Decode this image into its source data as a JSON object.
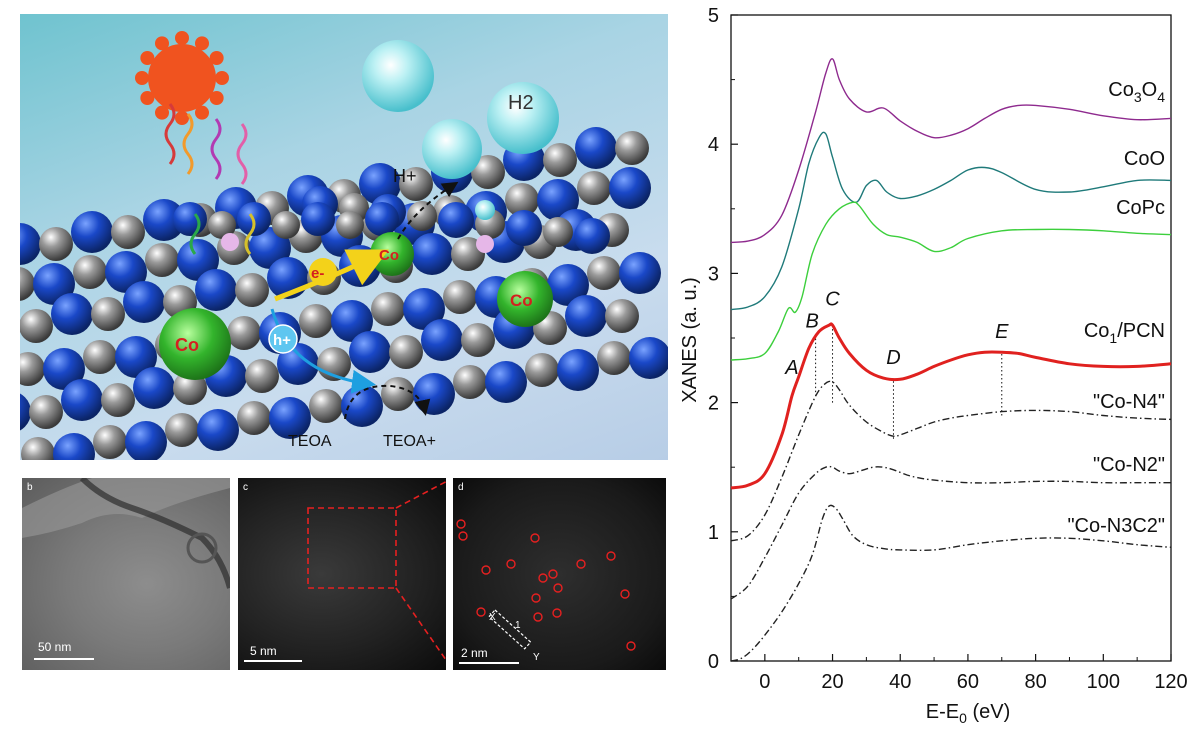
{
  "schematic": {
    "labels": {
      "h2": "H2",
      "h_plus": "H+",
      "e_minus": "e-",
      "h_plus_hole": "h+",
      "co": "Co",
      "teoa": "TEOA",
      "teoa_plus": "TEOA+"
    }
  },
  "micrographs": [
    {
      "letter": "b",
      "scale": "50 nm"
    },
    {
      "letter": "c",
      "scale": "5 nm"
    },
    {
      "letter": "d",
      "scale": "2 nm",
      "line_x": "X",
      "line_y": "Y",
      "line_number": "1"
    }
  ],
  "chart_data": {
    "type": "line",
    "xlabel": "E-E0 (eV)",
    "ylabel": "XANES (a. u.)",
    "xlim": [
      -10,
      120
    ],
    "ylim": [
      0,
      5
    ],
    "xticks": [
      0,
      20,
      40,
      60,
      80,
      100,
      120
    ],
    "yticks": [
      0,
      1,
      2,
      3,
      4,
      5
    ],
    "grid": false,
    "series": [
      {
        "name": "Co3O4",
        "label_main": "Co",
        "label_sub1": "3",
        "label_mid": "O",
        "label_sub2": "4",
        "color": "#8e2a8e",
        "style": "solid",
        "x": [
          -10,
          -5,
          0,
          5,
          10,
          15,
          18,
          20,
          22,
          25,
          30,
          35,
          40,
          45,
          50,
          55,
          60,
          65,
          70,
          75,
          80,
          90,
          100,
          110,
          120
        ],
        "y": [
          3.24,
          3.25,
          3.3,
          3.45,
          3.8,
          4.25,
          4.55,
          4.66,
          4.5,
          4.35,
          4.25,
          4.28,
          4.18,
          4.1,
          4.05,
          4.07,
          4.12,
          4.2,
          4.27,
          4.3,
          4.3,
          4.27,
          4.22,
          4.19,
          4.2
        ]
      },
      {
        "name": "CoO",
        "color": "#1f7a7a",
        "style": "solid",
        "x": [
          -10,
          -5,
          0,
          5,
          10,
          13,
          16,
          18,
          20,
          23,
          27,
          30,
          33,
          36,
          40,
          45,
          50,
          55,
          60,
          65,
          70,
          80,
          90,
          100,
          110,
          120
        ],
        "y": [
          2.72,
          2.74,
          2.82,
          3.05,
          3.5,
          3.85,
          4.05,
          4.08,
          3.9,
          3.65,
          3.55,
          3.68,
          3.72,
          3.63,
          3.58,
          3.6,
          3.65,
          3.72,
          3.8,
          3.82,
          3.78,
          3.65,
          3.63,
          3.67,
          3.72,
          3.72
        ]
      },
      {
        "name": "CoPc",
        "color": "#3ccf3c",
        "style": "solid",
        "x": [
          -10,
          -5,
          0,
          4,
          7,
          9,
          11,
          14,
          18,
          22,
          26,
          28,
          32,
          36,
          40,
          45,
          50,
          55,
          60,
          70,
          80,
          90,
          100,
          110,
          120
        ],
        "y": [
          2.33,
          2.34,
          2.38,
          2.55,
          2.73,
          2.7,
          2.82,
          3.15,
          3.38,
          3.5,
          3.55,
          3.52,
          3.38,
          3.3,
          3.28,
          3.24,
          3.17,
          3.2,
          3.27,
          3.33,
          3.34,
          3.34,
          3.33,
          3.31,
          3.3
        ]
      },
      {
        "name": "Co1/PCN",
        "label_main": "Co",
        "label_sub1": "1",
        "label_rest": "/PCN",
        "color": "#e0211f",
        "style": "bold",
        "x": [
          -10,
          -5,
          0,
          5,
          8,
          10,
          13,
          16,
          19,
          20,
          22,
          25,
          30,
          35,
          40,
          45,
          50,
          55,
          60,
          65,
          70,
          75,
          80,
          90,
          100,
          110,
          120
        ],
        "y": [
          1.34,
          1.36,
          1.45,
          1.75,
          2.05,
          2.2,
          2.42,
          2.55,
          2.6,
          2.6,
          2.5,
          2.38,
          2.25,
          2.19,
          2.18,
          2.22,
          2.28,
          2.33,
          2.37,
          2.39,
          2.39,
          2.38,
          2.35,
          2.3,
          2.28,
          2.28,
          2.3
        ]
      },
      {
        "name": "\"Co-N4\"",
        "color": "#222222",
        "style": "dashdot",
        "x": [
          -10,
          -5,
          0,
          5,
          10,
          15,
          18,
          20,
          22,
          25,
          30,
          35,
          38,
          40,
          45,
          50,
          55,
          60,
          70,
          80,
          90,
          100,
          110,
          120
        ],
        "y": [
          0.93,
          0.97,
          1.13,
          1.42,
          1.75,
          2.05,
          2.15,
          2.16,
          2.1,
          1.98,
          1.85,
          1.77,
          1.74,
          1.75,
          1.8,
          1.85,
          1.88,
          1.9,
          1.93,
          1.94,
          1.93,
          1.9,
          1.88,
          1.87
        ]
      },
      {
        "name": "\"Co-N2\"",
        "color": "#222222",
        "style": "dashdot",
        "x": [
          -10,
          -5,
          0,
          5,
          10,
          15,
          18,
          20,
          22,
          25,
          28,
          32,
          35,
          38,
          42,
          45,
          50,
          60,
          70,
          80,
          90,
          100,
          110,
          120
        ],
        "y": [
          0.48,
          0.58,
          0.8,
          1.05,
          1.3,
          1.45,
          1.5,
          1.5,
          1.47,
          1.45,
          1.47,
          1.5,
          1.5,
          1.48,
          1.44,
          1.42,
          1.4,
          1.38,
          1.38,
          1.39,
          1.39,
          1.38,
          1.38,
          1.38
        ]
      },
      {
        "name": "\"Co-N3C2\"",
        "color": "#222222",
        "style": "dashdot",
        "x": [
          -10,
          -7,
          -4,
          0,
          5,
          10,
          14,
          17,
          19,
          21,
          23,
          26,
          30,
          35,
          40,
          50,
          60,
          70,
          80,
          90,
          100,
          110,
          120
        ],
        "y": [
          0.0,
          0.02,
          0.08,
          0.2,
          0.38,
          0.6,
          0.82,
          1.1,
          1.2,
          1.18,
          1.1,
          0.97,
          0.9,
          0.87,
          0.86,
          0.86,
          0.9,
          0.93,
          0.95,
          0.95,
          0.93,
          0.9,
          0.88
        ]
      }
    ],
    "annotations": [
      {
        "text": "A",
        "x": 8,
        "y": 2.22
      },
      {
        "text": "B",
        "x": 14,
        "y": 2.58
      },
      {
        "text": "C",
        "x": 20,
        "y": 2.75
      },
      {
        "text": "D",
        "x": 38,
        "y": 2.3
      },
      {
        "text": "E",
        "x": 70,
        "y": 2.5
      }
    ],
    "dotted_markers": [
      {
        "x": 15,
        "y0": 2.05,
        "y1": 2.5
      },
      {
        "x": 20,
        "y0": 2.0,
        "y1": 2.58
      },
      {
        "x": 38,
        "y0": 1.72,
        "y1": 2.18
      },
      {
        "x": 70,
        "y0": 1.9,
        "y1": 2.38
      }
    ]
  }
}
